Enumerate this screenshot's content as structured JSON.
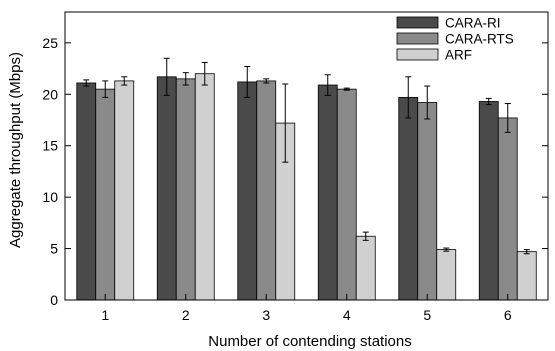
{
  "chart_data": {
    "type": "bar",
    "xlabel": "Number of contending stations",
    "ylabel": "Aggregate throughput (Mbps)",
    "ylim": [
      0,
      28
    ],
    "yticks": [
      0,
      5,
      10,
      15,
      20,
      25
    ],
    "categories": [
      "1",
      "2",
      "3",
      "4",
      "5",
      "6"
    ],
    "legend_position": "top-right",
    "series": [
      {
        "name": "CARA-RI",
        "color": "#4a4a4a",
        "values": [
          21.1,
          21.7,
          21.2,
          20.9,
          19.7,
          19.3
        ],
        "errors": [
          0.3,
          1.8,
          1.5,
          1.0,
          2.0,
          0.3
        ]
      },
      {
        "name": "CARA-RTS",
        "color": "#8a8a8a",
        "values": [
          20.5,
          21.5,
          21.3,
          20.5,
          19.2,
          17.7
        ],
        "errors": [
          0.8,
          0.6,
          0.2,
          0.1,
          1.6,
          1.4
        ]
      },
      {
        "name": "ARF",
        "color": "#d0d0d0",
        "values": [
          21.3,
          22.0,
          17.2,
          6.2,
          4.9,
          4.7
        ],
        "errors": [
          0.4,
          1.1,
          3.8,
          0.4,
          0.15,
          0.2
        ]
      }
    ]
  }
}
